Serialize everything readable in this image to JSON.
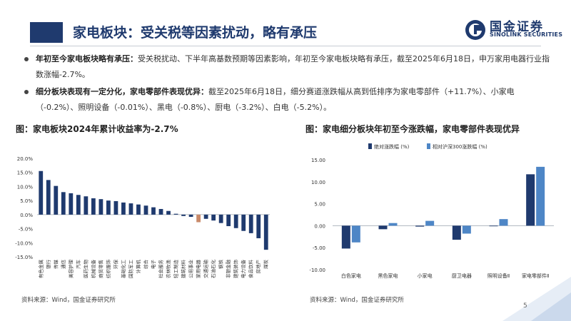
{
  "header": {
    "title": "家电板块：受关税等因素扰动，略有承压",
    "logo_cn": "国金证券",
    "logo_en": "SINOLINK SECURITIES"
  },
  "bullets": [
    {
      "bold": "年初至今家电板块略有承压：",
      "text": "受关税扰动、下半年高基数预期等因素影响，年初至今家电板块略有承压，截至2025年6月18日，申万家用电器行业指数涨幅-2.7%。"
    },
    {
      "bold": "细分板块表现有一定分化，家电零部件表现优异：",
      "text": "截至2025年6月18日，细分赛道涨跌幅从高到低排序为家电零部件（+11.7%）、小家电（-0.2%）、照明设备（-0.01%）、黑电（-0.8%）、厨电（-3.2%）、白电（-5.2%）。"
    }
  ],
  "chart_left": {
    "title": "图：家电板块2024年累计收益率为-2.7%",
    "source": "资料来源：Wind，国金证券研究所"
  },
  "chart_right": {
    "title": "图：家电细分板块年初至今涨跌幅，家电零部件表现优异",
    "source": "资料来源：Wind，国金证券研究所"
  },
  "page_number": "5",
  "colors": {
    "navy": "#1f3a6e",
    "steel": "#4e86c6",
    "highlight": "#c98a6a"
  },
  "chart_data": [
    {
      "type": "bar",
      "title": "图：家电板块2024年累计收益率为-2.7%",
      "ylim": [
        -15,
        20
      ],
      "yticks": [
        "20.0%",
        "15.0%",
        "10.0%",
        "5.0%",
        "0.0%",
        "-5.0%",
        "-10.0%",
        "-15.0%"
      ],
      "ytick_values": [
        20,
        15,
        10,
        5,
        0,
        -5,
        -10,
        -15
      ],
      "grid": false,
      "categories": [
        "有色金属",
        "银行",
        "传媒",
        "通信",
        "美容护理",
        "汽车",
        "医药生物",
        "机械设备",
        "商贸零售",
        "纺织服饰",
        "环保",
        "基础化工",
        "国防军工",
        "计算机",
        "综合",
        "电子",
        "社会服务",
        "农林牧渔",
        "轻工制造",
        "建筑材料",
        "公用事业",
        "家用电器",
        "交通运输",
        "石油石化",
        "钢铁",
        "非银金融",
        "建筑装饰",
        "电力设备",
        "食品饮料",
        "房地产",
        "煤炭"
      ],
      "values": [
        15.5,
        12.3,
        10.2,
        8.0,
        7.6,
        7.0,
        6.5,
        5.8,
        5.5,
        5.0,
        4.8,
        4.3,
        4.0,
        3.6,
        3.2,
        2.6,
        2.0,
        1.3,
        0.3,
        -0.5,
        -0.8,
        -2.7,
        -1.5,
        -2.1,
        -3.0,
        -4.1,
        -4.8,
        -5.8,
        -6.6,
        -8.4,
        -12.5
      ],
      "highlight_category": "家用电器",
      "highlight_color": "#c98a6a"
    },
    {
      "type": "bar",
      "title": "图：家电细分板块年初至今涨跌幅，家电零部件表现优异",
      "ylim": [
        -10,
        15
      ],
      "yticks": [
        "15.00",
        "10.00",
        "5.00",
        "0.00",
        "-5.00",
        "-10.00"
      ],
      "ytick_values": [
        15,
        10,
        5,
        0,
        -5,
        -10
      ],
      "grid": false,
      "legend_position": "top",
      "categories": [
        "白色家电",
        "黑色家电",
        "小家电",
        "厨卫电器",
        "照明设备Ⅱ",
        "家电零部件Ⅱ"
      ],
      "series": [
        {
          "name": "绝对涨跌幅 (%)",
          "color": "#1f3a6e",
          "values": [
            -5.2,
            -0.8,
            -0.2,
            -3.2,
            -0.01,
            11.7
          ]
        },
        {
          "name": "相对沪深300涨跌幅 (%)",
          "color": "#4e86c6",
          "values": [
            -3.8,
            0.6,
            1.1,
            -1.8,
            1.5,
            13.4
          ]
        }
      ]
    }
  ]
}
